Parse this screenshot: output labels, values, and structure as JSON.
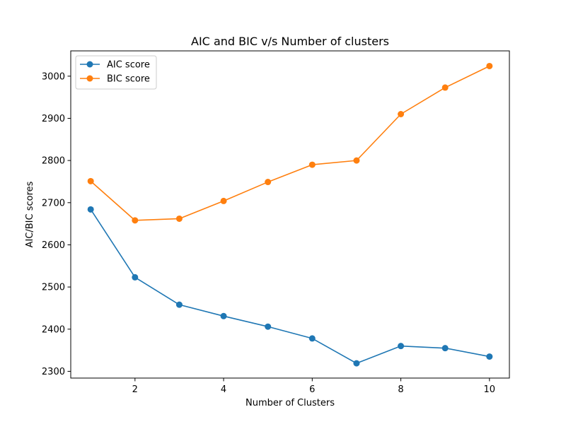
{
  "chart_data": {
    "type": "line",
    "title": "AIC and BIC v/s Number of clusters",
    "xlabel": "Number of Clusters",
    "ylabel": "AIC/BIC scores",
    "x": [
      1,
      2,
      3,
      4,
      5,
      6,
      7,
      8,
      9,
      10
    ],
    "xlim": [
      0.55,
      10.45
    ],
    "ylim": [
      2284,
      3060
    ],
    "xticks": [
      2,
      4,
      6,
      8,
      10
    ],
    "yticks": [
      2300,
      2400,
      2500,
      2600,
      2700,
      2800,
      2900,
      3000
    ],
    "grid": false,
    "legend_position": "upper left",
    "series": [
      {
        "name": "AIC score",
        "color": "#1f77b4",
        "marker": "circle",
        "values": [
          2684,
          2523,
          2458,
          2431,
          2406,
          2378,
          2319,
          2360,
          2355,
          2335
        ]
      },
      {
        "name": "BIC score",
        "color": "#ff7f0e",
        "marker": "circle",
        "values": [
          2751,
          2658,
          2662,
          2704,
          2749,
          2790,
          2800,
          2910,
          2973,
          3024
        ]
      }
    ]
  }
}
